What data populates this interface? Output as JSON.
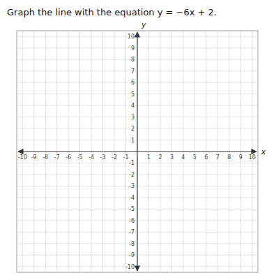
{
  "chart_data": {
    "type": "coordinate_plane",
    "title": "Graph the line with the equation y = −6x + 2.",
    "x_label": "x",
    "y_label": "y",
    "xlim": [
      -10.5,
      10.5
    ],
    "ylim": [
      -10.5,
      10.5
    ],
    "xticks": [
      -10,
      -9,
      -8,
      -7,
      -6,
      -5,
      -4,
      -3,
      -2,
      -1,
      1,
      2,
      3,
      4,
      5,
      6,
      7,
      8,
      9,
      10
    ],
    "yticks": [
      -10,
      -9,
      -8,
      -7,
      -6,
      -5,
      -4,
      -3,
      -2,
      -1,
      1,
      2,
      3,
      4,
      5,
      6,
      7,
      8,
      9,
      10
    ],
    "grid": true
  }
}
